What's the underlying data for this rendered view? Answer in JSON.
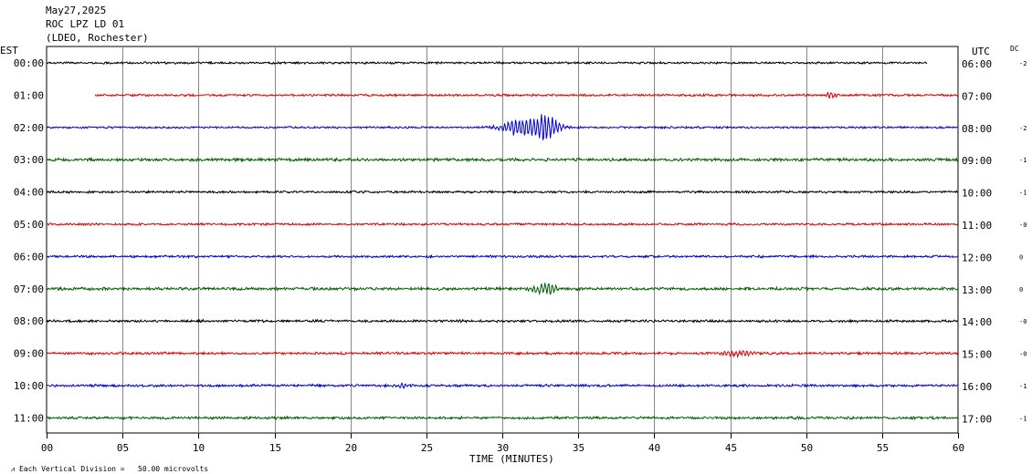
{
  "header": {
    "date": "May27,2025",
    "station": "ROC LPZ LD 01",
    "network": "(LDEO, Rochester)"
  },
  "left_zone_label": "EST",
  "right_zone_label": "UTC",
  "dc_label": "DC",
  "footer_note": "Each Vertical Division =   50.00 microvolts",
  "chart_data": {
    "type": "line",
    "title": "",
    "xlabel": "TIME (MINUTES)",
    "xlim": [
      0,
      60
    ],
    "x_ticks": [
      "00",
      "05",
      "10",
      "15",
      "20",
      "25",
      "30",
      "35",
      "40",
      "45",
      "50",
      "55",
      "60"
    ],
    "grid": true,
    "trace_colors": [
      "#000000",
      "#e00000",
      "#0000d0",
      "#006000"
    ],
    "series": [
      {
        "left": "00:00",
        "right": "06:00",
        "dc": "-2",
        "color": "#000000",
        "x_start": 0,
        "x_end": 58,
        "amp": 1.3,
        "events": []
      },
      {
        "left": "01:00",
        "right": "07:00",
        "dc": "",
        "color": "#e00000",
        "x_start": 3.2,
        "x_end": 60,
        "amp": 1.4,
        "events": [
          {
            "at": 51.6,
            "amp": 2.6,
            "width": 0.4
          }
        ]
      },
      {
        "left": "02:00",
        "right": "08:00",
        "dc": "-2",
        "color": "#0000d0",
        "x_start": 0,
        "x_end": 60,
        "amp": 1.2,
        "events": [
          {
            "at": 31.5,
            "amp": 8.0,
            "width": 1.6
          },
          {
            "at": 33.0,
            "amp": 9.5,
            "width": 0.7
          }
        ]
      },
      {
        "left": "03:00",
        "right": "09:00",
        "dc": "-1",
        "color": "#006000",
        "x_start": 0,
        "x_end": 60,
        "amp": 1.8,
        "events": []
      },
      {
        "left": "04:00",
        "right": "10:00",
        "dc": "-1",
        "color": "#000000",
        "x_start": 0,
        "x_end": 60,
        "amp": 1.4,
        "events": []
      },
      {
        "left": "05:00",
        "right": "11:00",
        "dc": "-0",
        "color": "#e00000",
        "x_start": 0,
        "x_end": 60,
        "amp": 1.4,
        "events": []
      },
      {
        "left": "06:00",
        "right": "12:00",
        "dc": "0",
        "color": "#0000d0",
        "x_start": 0,
        "x_end": 60,
        "amp": 1.4,
        "events": []
      },
      {
        "left": "07:00",
        "right": "13:00",
        "dc": "0",
        "color": "#006000",
        "x_start": 0,
        "x_end": 60,
        "amp": 1.8,
        "events": [
          {
            "at": 32.8,
            "amp": 5.0,
            "width": 0.8
          }
        ]
      },
      {
        "left": "08:00",
        "right": "14:00",
        "dc": "-0",
        "color": "#000000",
        "x_start": 0,
        "x_end": 60,
        "amp": 1.5,
        "events": []
      },
      {
        "left": "09:00",
        "right": "15:00",
        "dc": "-0",
        "color": "#e00000",
        "x_start": 0,
        "x_end": 60,
        "amp": 1.5,
        "events": [
          {
            "at": 45.5,
            "amp": 2.6,
            "width": 1.0
          }
        ]
      },
      {
        "left": "10:00",
        "right": "16:00",
        "dc": "-1",
        "color": "#0000d0",
        "x_start": 0,
        "x_end": 60,
        "amp": 1.5,
        "events": [
          {
            "at": 23.5,
            "amp": 2.4,
            "width": 0.6
          }
        ]
      },
      {
        "left": "11:00",
        "right": "17:00",
        "dc": "-1",
        "color": "#006000",
        "x_start": 0,
        "x_end": 60,
        "amp": 1.6,
        "events": []
      }
    ]
  }
}
